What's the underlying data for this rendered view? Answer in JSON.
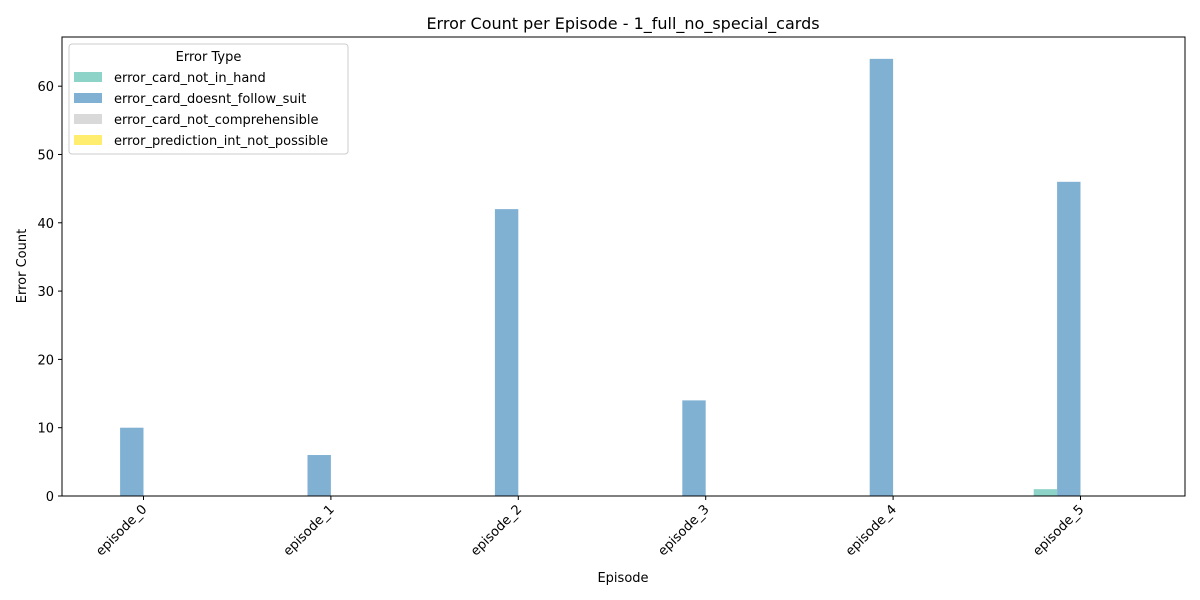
{
  "chart_data": {
    "type": "bar",
    "title": "Error Count per Episode - 1_full_no_special_cards",
    "xlabel": "Episode",
    "ylabel": "Error Count",
    "categories": [
      "episode_0",
      "episode_1",
      "episode_2",
      "episode_3",
      "episode_4",
      "episode_5"
    ],
    "ylim": [
      0,
      67.2
    ],
    "yticks": [
      0,
      10,
      20,
      30,
      40,
      50,
      60
    ],
    "legend_title": "Error Type",
    "legend_position": "top-left",
    "grid": false,
    "series": [
      {
        "name": "error_card_not_in_hand",
        "color": "#8dd3c7",
        "values": [
          0,
          0,
          0,
          0,
          0,
          1
        ]
      },
      {
        "name": "error_card_doesnt_follow_suit",
        "color": "#80b1d3",
        "values": [
          10,
          6,
          42,
          14,
          64,
          46
        ]
      },
      {
        "name": "error_card_not_comprehensible",
        "color": "#d9d9d9",
        "values": [
          0,
          0,
          0,
          0,
          0,
          0
        ]
      },
      {
        "name": "error_prediction_int_not_possible",
        "color": "#ffed6f",
        "values": [
          0,
          0,
          0,
          0,
          0,
          0
        ]
      }
    ]
  }
}
